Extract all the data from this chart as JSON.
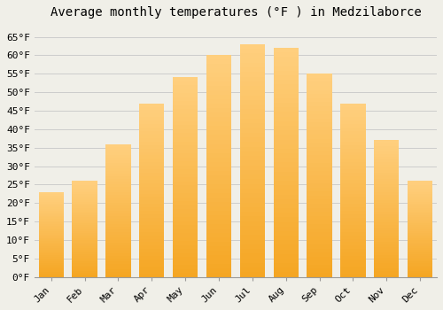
{
  "title": "Average monthly temperatures (°F ) in Medzilaborce",
  "months": [
    "Jan",
    "Feb",
    "Mar",
    "Apr",
    "May",
    "Jun",
    "Jul",
    "Aug",
    "Sep",
    "Oct",
    "Nov",
    "Dec"
  ],
  "values": [
    23,
    26,
    36,
    47,
    54,
    60,
    63,
    62,
    55,
    47,
    37,
    26
  ],
  "bar_color_bottom": "#F5A623",
  "bar_color_top": "#FFD080",
  "background_color": "#F0EFE8",
  "grid_color": "#CCCCCC",
  "ylim": [
    0,
    68
  ],
  "yticks": [
    0,
    5,
    10,
    15,
    20,
    25,
    30,
    35,
    40,
    45,
    50,
    55,
    60,
    65
  ],
  "title_fontsize": 10,
  "tick_fontsize": 8,
  "font_family": "monospace"
}
